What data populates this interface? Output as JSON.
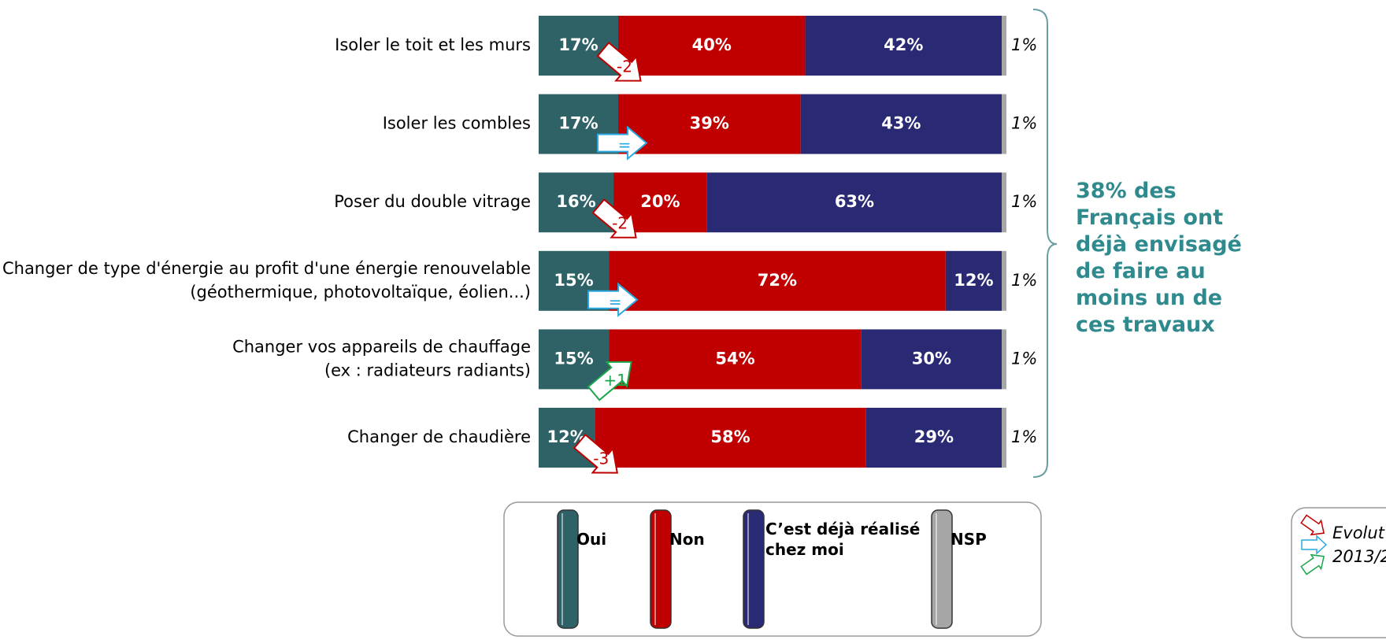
{
  "chart_data": {
    "type": "stacked_barh",
    "categories": [
      "Isoler le toit et les murs",
      "Isoler les combles",
      "Poser du double vitrage",
      "Changer de type d'énergie au profit d'une énergie renouvelable\n(géothermique, photovoltaïque, éolien...)",
      "Changer vos appareils de chauffage\n(ex : radiateurs radiants)",
      "Changer de chaudière"
    ],
    "xlim": [
      0,
      100
    ],
    "series": [
      {
        "name": "Oui",
        "color": "#2e6266",
        "values": [
          17,
          17,
          16,
          15,
          15,
          12
        ],
        "value_labels": [
          "17%",
          "17%",
          "16%",
          "15%",
          "15%",
          "12%"
        ]
      },
      {
        "name": "Non",
        "color": "#c00000",
        "values": [
          40,
          39,
          20,
          72,
          54,
          58
        ],
        "value_labels": [
          "40%",
          "39%",
          "20%",
          "72%",
          "54%",
          "58%"
        ]
      },
      {
        "name": "C’est déjà réalisé\nchez moi",
        "color": "#2a2a74",
        "values": [
          42,
          43,
          63,
          12,
          30,
          29
        ],
        "value_labels": [
          "42%",
          "43%",
          "63%",
          "12%",
          "30%",
          "29%"
        ]
      },
      {
        "name": "NSP",
        "color": "#a6a6a6",
        "values": [
          1,
          1,
          1,
          1,
          1,
          1
        ],
        "value_labels": [
          "1%",
          "1%",
          "1%",
          "1%",
          "1%",
          "1%"
        ],
        "label_outside": true
      }
    ],
    "evolution": [
      {
        "label": "-2",
        "trend": "down",
        "color": "#c00000"
      },
      {
        "label": "=",
        "trend": "flat",
        "color": "#29a9e0"
      },
      {
        "label": "-2",
        "trend": "down",
        "color": "#c00000"
      },
      {
        "label": "=",
        "trend": "flat",
        "color": "#29a9e0"
      },
      {
        "label": "+1",
        "trend": "up",
        "color": "#1aa64a"
      },
      {
        "label": "-3",
        "trend": "down",
        "color": "#c00000"
      }
    ],
    "annotation": "38% des\nFrançais ont\ndéjà envisagé\nde faire au\nmoins un de\nces travaux",
    "annotation_color": "#2f8a8e",
    "evolution_legend": [
      "Evolut",
      "2013/2"
    ]
  }
}
